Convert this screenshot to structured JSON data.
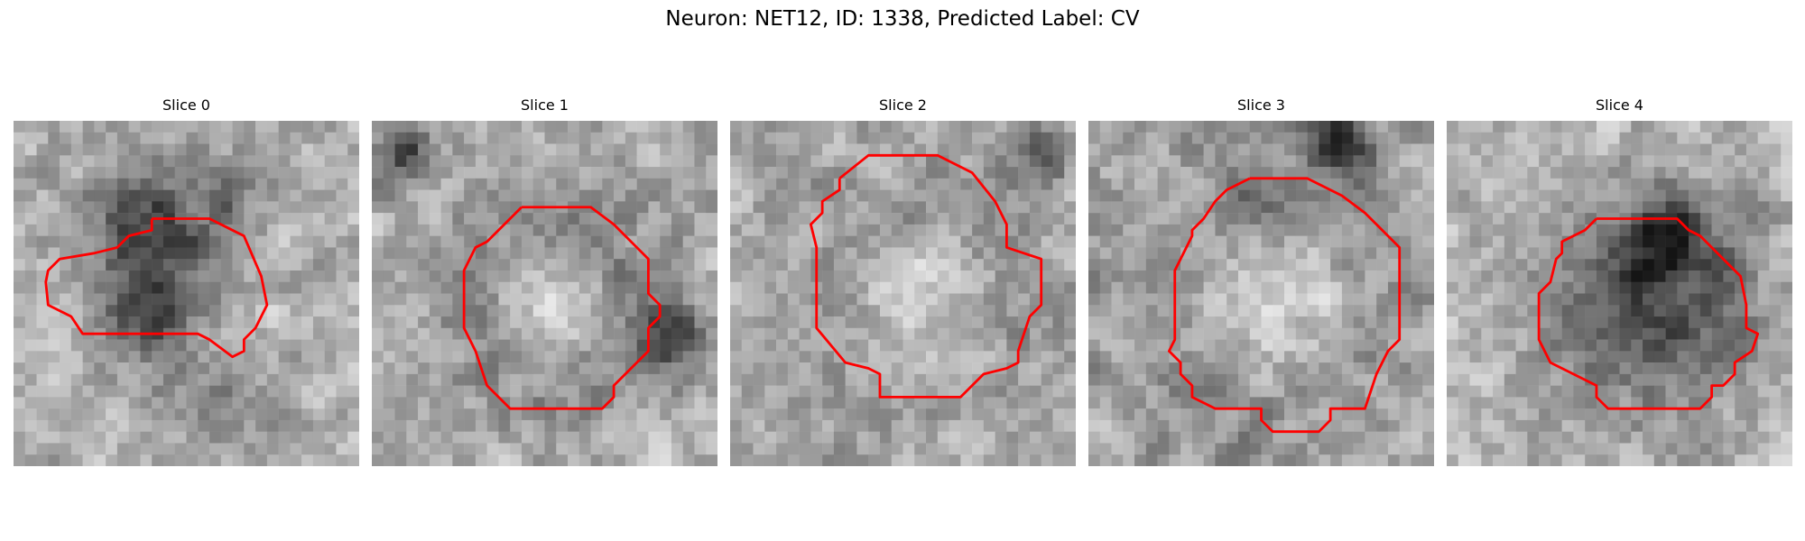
{
  "figure": {
    "title": "Neuron: NET12, ID: 1338, Predicted Label: CV"
  },
  "grid_size": 30,
  "outline_color": "#ff0000",
  "panels": [
    {
      "title": "Slice 0",
      "seed": 11,
      "blobs": [
        [
          12,
          10,
          5.5,
          -0.45
        ],
        [
          12,
          18,
          4,
          -0.3
        ],
        [
          20,
          6,
          3,
          -0.2
        ],
        [
          18,
          25,
          4,
          -0.2
        ]
      ],
      "contour": [
        [
          12,
          8.5
        ],
        [
          17,
          8.5
        ],
        [
          20,
          10
        ],
        [
          21.5,
          13.5
        ],
        [
          22,
          16
        ],
        [
          21,
          18
        ],
        [
          20,
          19
        ],
        [
          20,
          20
        ],
        [
          19,
          20.5
        ],
        [
          17,
          19
        ],
        [
          16,
          18.5
        ],
        [
          6,
          18.5
        ],
        [
          5,
          17
        ],
        [
          3,
          16
        ],
        [
          2.8,
          14
        ],
        [
          3,
          13
        ],
        [
          4,
          12
        ],
        [
          7,
          11.5
        ],
        [
          9,
          11
        ],
        [
          10,
          10
        ],
        [
          12,
          9.5
        ]
      ]
    },
    {
      "title": "Slice 1",
      "seed": 23,
      "blobs": [
        [
          16,
          16,
          8,
          -0.45
        ],
        [
          16,
          16,
          5,
          0.55
        ],
        [
          3,
          3,
          2.5,
          -0.4
        ],
        [
          26,
          19,
          2.5,
          -0.4
        ]
      ],
      "contour": [
        [
          13,
          7.5
        ],
        [
          19,
          7.5
        ],
        [
          21,
          9
        ],
        [
          23,
          11
        ],
        [
          24,
          12
        ],
        [
          24,
          15
        ],
        [
          25,
          16
        ],
        [
          25,
          17
        ],
        [
          24,
          18
        ],
        [
          24,
          20
        ],
        [
          23,
          21
        ],
        [
          22,
          22
        ],
        [
          21,
          23
        ],
        [
          21,
          24
        ],
        [
          20,
          25
        ],
        [
          12,
          25
        ],
        [
          11,
          24
        ],
        [
          10,
          23
        ],
        [
          9,
          20
        ],
        [
          8,
          18
        ],
        [
          8,
          13
        ],
        [
          9,
          11
        ],
        [
          10,
          10.5
        ],
        [
          11,
          9.5
        ]
      ]
    },
    {
      "title": "Slice 2",
      "seed": 37,
      "blobs": [
        [
          16,
          16,
          10,
          -0.35
        ],
        [
          16,
          16,
          6.5,
          0.45
        ],
        [
          27,
          3,
          2.5,
          -0.35
        ]
      ],
      "contour": [
        [
          9.5,
          5
        ],
        [
          12,
          3
        ],
        [
          18,
          3
        ],
        [
          21,
          4.5
        ],
        [
          23,
          7
        ],
        [
          24,
          9
        ],
        [
          24,
          11
        ],
        [
          27,
          12
        ],
        [
          27,
          16
        ],
        [
          26,
          17
        ],
        [
          25,
          20
        ],
        [
          25,
          21
        ],
        [
          24,
          21.5
        ],
        [
          22,
          22
        ],
        [
          21,
          23
        ],
        [
          20,
          24
        ],
        [
          13,
          24
        ],
        [
          13,
          22
        ],
        [
          12,
          21.5
        ],
        [
          10,
          21
        ],
        [
          7.5,
          18
        ],
        [
          7.5,
          11
        ],
        [
          7,
          9
        ],
        [
          8,
          8
        ],
        [
          8,
          7
        ],
        [
          9.5,
          6
        ]
      ]
    },
    {
      "title": "Slice 3",
      "seed": 49,
      "blobs": [
        [
          16,
          16,
          11,
          -0.4
        ],
        [
          16,
          16,
          7,
          0.5
        ],
        [
          22,
          2,
          3,
          -0.45
        ],
        [
          14,
          8,
          2.5,
          -0.2
        ]
      ],
      "contour": [
        [
          14,
          5
        ],
        [
          19,
          5
        ],
        [
          21,
          6
        ],
        [
          22,
          6.5
        ],
        [
          24,
          8
        ],
        [
          25,
          9
        ],
        [
          27,
          11
        ],
        [
          27,
          19
        ],
        [
          26,
          20
        ],
        [
          25,
          22
        ],
        [
          24,
          25
        ],
        [
          21,
          25
        ],
        [
          21,
          26
        ],
        [
          20,
          27
        ],
        [
          16,
          27
        ],
        [
          15,
          26
        ],
        [
          15,
          25
        ],
        [
          11,
          25
        ],
        [
          9,
          24
        ],
        [
          9,
          23
        ],
        [
          8,
          22
        ],
        [
          8,
          21
        ],
        [
          7,
          20
        ],
        [
          7.5,
          19
        ],
        [
          7.5,
          13
        ],
        [
          8,
          12
        ],
        [
          9,
          10
        ],
        [
          9,
          9.5
        ],
        [
          10,
          8.5
        ],
        [
          11,
          7
        ],
        [
          12,
          6
        ]
      ]
    },
    {
      "title": "Slice 4",
      "seed": 61,
      "blobs": [
        [
          18,
          16,
          8,
          -0.4
        ],
        [
          19,
          10,
          3.5,
          -0.4
        ]
      ],
      "contour": [
        [
          13,
          8.5
        ],
        [
          20,
          8.5
        ],
        [
          21,
          9.5
        ],
        [
          22,
          10
        ],
        [
          24,
          12
        ],
        [
          25.5,
          13.5
        ],
        [
          26,
          16
        ],
        [
          26,
          18
        ],
        [
          27,
          18.5
        ],
        [
          26.5,
          20
        ],
        [
          25,
          21
        ],
        [
          25,
          22
        ],
        [
          24,
          23
        ],
        [
          23,
          23
        ],
        [
          23,
          24
        ],
        [
          22,
          25
        ],
        [
          14,
          25
        ],
        [
          13,
          24
        ],
        [
          13,
          23
        ],
        [
          11,
          22
        ],
        [
          9,
          21
        ],
        [
          8,
          19
        ],
        [
          8,
          16
        ],
        [
          8,
          15
        ],
        [
          9,
          14
        ],
        [
          9.5,
          12
        ],
        [
          10,
          11.5
        ],
        [
          10,
          10.5
        ],
        [
          11,
          10
        ],
        [
          12,
          9.5
        ]
      ]
    }
  ]
}
